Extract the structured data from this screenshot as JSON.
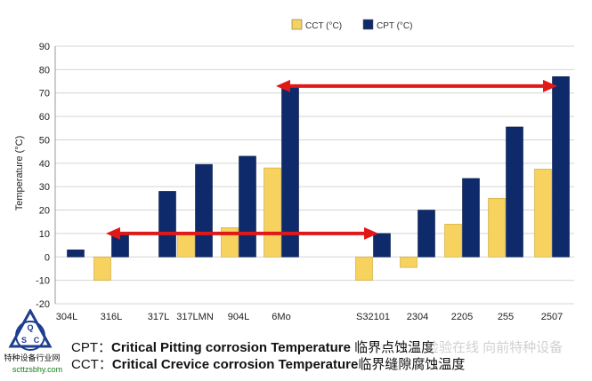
{
  "chart_data": {
    "type": "bar",
    "ylabel": "Temperature (°C)",
    "ylim": [
      -20,
      90
    ],
    "yticks": [
      -20,
      -10,
      0,
      10,
      20,
      30,
      40,
      50,
      60,
      70,
      80,
      90
    ],
    "grid": true,
    "legend_position": "top-center",
    "categories": [
      "304L",
      "316L",
      "317L",
      "317LMN",
      "904L",
      "6Mo",
      "S32101",
      "2304",
      "2205",
      "255",
      "2507"
    ],
    "series": [
      {
        "name": "CCT (°C)",
        "color": "#f7d25e",
        "values": [
          null,
          -10,
          0,
          10,
          12.5,
          38,
          -10,
          -4.5,
          14,
          25,
          37.5
        ]
      },
      {
        "name": "CPT (°C)",
        "color": "#0e2a6b",
        "values": [
          3,
          10,
          28,
          39.5,
          43,
          73,
          10,
          20,
          33.5,
          55.5,
          77
        ]
      }
    ],
    "annotations": [
      {
        "type": "double-arrow",
        "color": "#e01818",
        "y": 73,
        "from": "6Mo",
        "to": "2507"
      },
      {
        "type": "double-arrow",
        "color": "#e01818",
        "y": 10,
        "from": "316L",
        "to": "S32101"
      }
    ]
  },
  "captions": [
    {
      "prefix": "CPT：",
      "bold": "Critical Pitting corrosion Temperature",
      "suffix": " 临界点蚀温度"
    },
    {
      "prefix": "CCT：",
      "bold": "Critical Crevice corrosion Temperature",
      "suffix": "临界缝隙腐蚀温度"
    }
  ],
  "logo": {
    "text": "特种设备行业网",
    "url_text": "scttzsbhy.com",
    "letters": [
      "Q",
      "S",
      "C"
    ]
  },
  "watermark": "检验在线  向前特种设备",
  "colors": {
    "grid": "#d4d4d4",
    "plot_bg": "#ffffff",
    "arrow": "#e01818"
  }
}
